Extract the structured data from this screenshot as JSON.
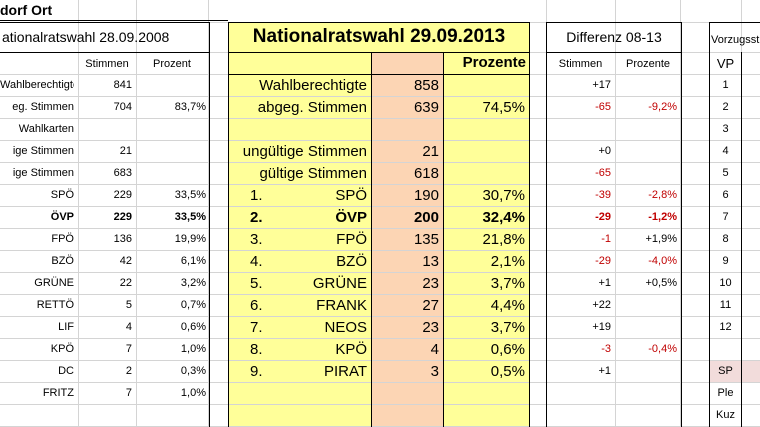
{
  "place_title": "dorf Ort",
  "left": {
    "title": "ationalratswahl 28.09.2008",
    "col_stimmen": "Stimmen",
    "col_prozent": "Prozent",
    "rows": [
      {
        "label": "Wahlberechtigte",
        "stimmen": "841",
        "prozent": "",
        "bold": false
      },
      {
        "label": "eg. Stimmen",
        "stimmen": "704",
        "prozent": "83,7%",
        "bold": false
      },
      {
        "label": "Wahlkarten",
        "stimmen": "",
        "prozent": "",
        "bold": false
      },
      {
        "label": "ige Stimmen",
        "stimmen": "21",
        "prozent": "",
        "bold": false
      },
      {
        "label": "ige Stimmen",
        "stimmen": "683",
        "prozent": "",
        "bold": false
      },
      {
        "label": "SPÖ",
        "stimmen": "229",
        "prozent": "33,5%",
        "bold": false
      },
      {
        "label": "ÖVP",
        "stimmen": "229",
        "prozent": "33,5%",
        "bold": true
      },
      {
        "label": "FPÖ",
        "stimmen": "136",
        "prozent": "19,9%",
        "bold": false
      },
      {
        "label": "BZÖ",
        "stimmen": "42",
        "prozent": "6,1%",
        "bold": false
      },
      {
        "label": "GRÜNE",
        "stimmen": "22",
        "prozent": "3,2%",
        "bold": false
      },
      {
        "label": "RETTÖ",
        "stimmen": "5",
        "prozent": "0,7%",
        "bold": false
      },
      {
        "label": "LIF",
        "stimmen": "4",
        "prozent": "0,6%",
        "bold": false
      },
      {
        "label": "KPÖ",
        "stimmen": "7",
        "prozent": "1,0%",
        "bold": false
      },
      {
        "label": "DC",
        "stimmen": "2",
        "prozent": "0,3%",
        "bold": false
      },
      {
        "label": "FRITZ",
        "stimmen": "7",
        "prozent": "1,0%",
        "bold": false
      }
    ]
  },
  "center": {
    "title": "Nationalratswahl 29.09.2013",
    "col_prozente": "Prozente",
    "rows": [
      {
        "num": "",
        "label": "Wahlberechtigte",
        "stimmen": "858",
        "prozent": "",
        "bold": false
      },
      {
        "num": "",
        "label": "abgeg. Stimmen",
        "stimmen": "639",
        "prozent": "74,5%",
        "bold": false
      },
      {
        "num": "",
        "label": "",
        "stimmen": "",
        "prozent": "",
        "bold": false
      },
      {
        "num": "",
        "label": "ungültige Stimmen",
        "stimmen": "21",
        "prozent": "",
        "bold": false
      },
      {
        "num": "",
        "label": "gültige Stimmen",
        "stimmen": "618",
        "prozent": "",
        "bold": false
      },
      {
        "num": "1.",
        "label": "SPÖ",
        "stimmen": "190",
        "prozent": "30,7%",
        "bold": false
      },
      {
        "num": "2.",
        "label": "ÖVP",
        "stimmen": "200",
        "prozent": "32,4%",
        "bold": true
      },
      {
        "num": "3.",
        "label": "FPÖ",
        "stimmen": "135",
        "prozent": "21,8%",
        "bold": false
      },
      {
        "num": "4.",
        "label": "BZÖ",
        "stimmen": "13",
        "prozent": "2,1%",
        "bold": false
      },
      {
        "num": "5.",
        "label": "GRÜNE",
        "stimmen": "23",
        "prozent": "3,7%",
        "bold": false
      },
      {
        "num": "6.",
        "label": "FRANK",
        "stimmen": "27",
        "prozent": "4,4%",
        "bold": false
      },
      {
        "num": "7.",
        "label": "NEOS",
        "stimmen": "23",
        "prozent": "3,7%",
        "bold": false
      },
      {
        "num": "8.",
        "label": "KPÖ",
        "stimmen": "4",
        "prozent": "0,6%",
        "bold": false
      },
      {
        "num": "9.",
        "label": "PIRAT",
        "stimmen": "3",
        "prozent": "0,5%",
        "bold": false
      },
      {
        "num": "",
        "label": "",
        "stimmen": "",
        "prozent": "",
        "bold": false
      }
    ]
  },
  "diff": {
    "title": "Differenz 08-13",
    "col_stimmen": "Stimmen",
    "col_prozente": "Prozente",
    "rows": [
      {
        "stimmen": "+17",
        "prozent": "",
        "s_red": false,
        "p_red": false,
        "bold": false
      },
      {
        "stimmen": "-65",
        "prozent": "-9,2%",
        "s_red": true,
        "p_red": true,
        "bold": false
      },
      {
        "stimmen": "",
        "prozent": "",
        "s_red": false,
        "p_red": false,
        "bold": false
      },
      {
        "stimmen": "+0",
        "prozent": "",
        "s_red": false,
        "p_red": false,
        "bold": false
      },
      {
        "stimmen": "-65",
        "prozent": "",
        "s_red": true,
        "p_red": false,
        "bold": false
      },
      {
        "stimmen": "-39",
        "prozent": "-2,8%",
        "s_red": true,
        "p_red": true,
        "bold": false
      },
      {
        "stimmen": "-29",
        "prozent": "-1,2%",
        "s_red": true,
        "p_red": true,
        "bold": true
      },
      {
        "stimmen": "-1",
        "prozent": "+1,9%",
        "s_red": true,
        "p_red": false,
        "bold": false
      },
      {
        "stimmen": "-29",
        "prozent": "-4,0%",
        "s_red": true,
        "p_red": true,
        "bold": false
      },
      {
        "stimmen": "+1",
        "prozent": "+0,5%",
        "s_red": false,
        "p_red": false,
        "bold": false
      },
      {
        "stimmen": "+22",
        "prozent": "",
        "s_red": false,
        "p_red": false,
        "bold": false
      },
      {
        "stimmen": "+19",
        "prozent": "",
        "s_red": false,
        "p_red": false,
        "bold": false
      },
      {
        "stimmen": "-3",
        "prozent": "-0,4%",
        "s_red": true,
        "p_red": true,
        "bold": false
      },
      {
        "stimmen": "+1",
        "prozent": "",
        "s_red": false,
        "p_red": false,
        "bold": false
      },
      {
        "stimmen": "",
        "prozent": "",
        "s_red": false,
        "p_red": false,
        "bold": false
      }
    ]
  },
  "right": {
    "title": "Vorzugsst",
    "col_vp": "VP",
    "rows": [
      "1",
      "2",
      "3",
      "4",
      "5",
      "6",
      "7",
      "8",
      "9",
      "10",
      "11",
      "12",
      "",
      "SP",
      "Ple",
      "Kuz"
    ]
  },
  "colors": {
    "yellow": "#ffff99",
    "peach": "#fcd5b4",
    "pink": "#f2dcdb",
    "red": "#c00000",
    "grid": "#d4d4d4"
  }
}
